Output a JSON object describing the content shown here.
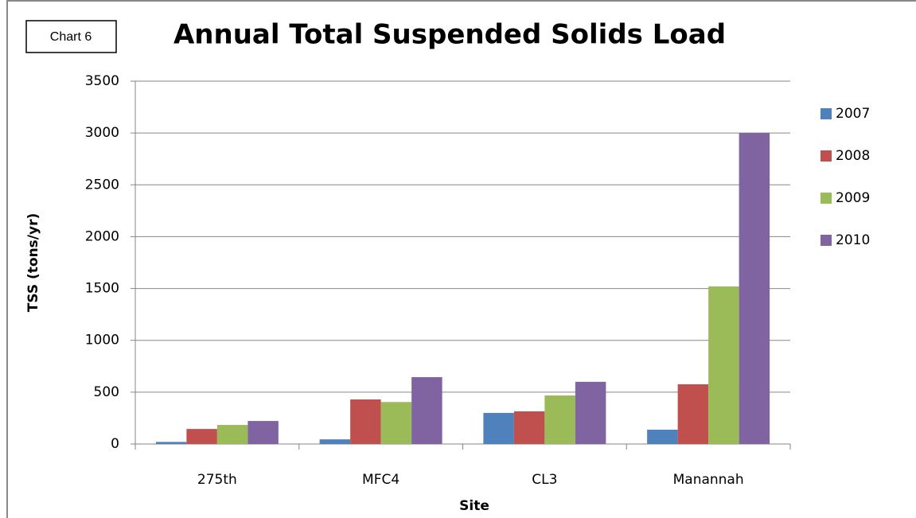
{
  "chart_data": {
    "type": "bar",
    "chart_label": "Chart 6",
    "title": "Annual Total Suspended Solids Load",
    "x_label": "Site",
    "y_label": "TSS (tons/yr)",
    "categories": [
      "275th",
      "MFC4",
      "CL3",
      "Manannah"
    ],
    "series": [
      {
        "name": "2007",
        "color": "#4f81bd",
        "values": [
          20,
          45,
          300,
          138
        ]
      },
      {
        "name": "2008",
        "color": "#c0504d",
        "values": [
          145,
          430,
          315,
          576
        ]
      },
      {
        "name": "2009",
        "color": "#9bbb59",
        "values": [
          184,
          405,
          468,
          1520
        ]
      },
      {
        "name": "2010",
        "color": "#8064a2",
        "values": [
          222,
          645,
          600,
          3000
        ]
      }
    ],
    "ylim": [
      0,
      3500
    ],
    "yticks": [
      0,
      500,
      1000,
      1500,
      2000,
      2500,
      3000,
      3500
    ],
    "grid": true,
    "legend": "right"
  }
}
